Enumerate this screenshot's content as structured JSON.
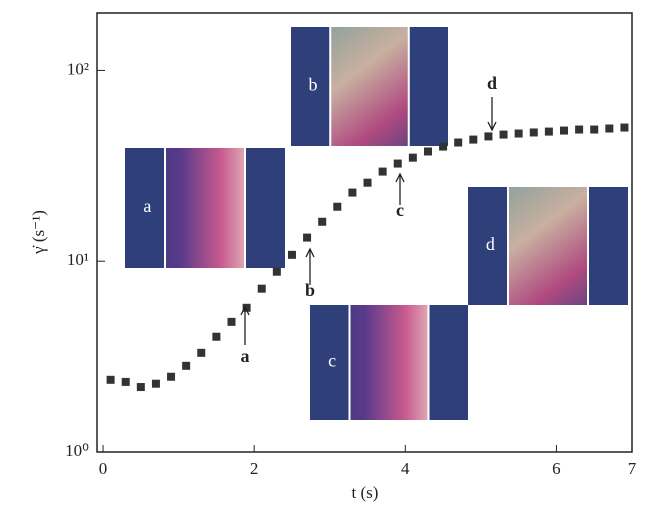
{
  "chart_data": {
    "type": "scatter",
    "x_label": "t (s)",
    "y_label": "γ̇ (s⁻¹)",
    "x": [
      0.1,
      0.3,
      0.5,
      0.7,
      0.9,
      1.1,
      1.3,
      1.5,
      1.7,
      1.9,
      2.1,
      2.3,
      2.5,
      2.7,
      2.9,
      3.1,
      3.3,
      3.5,
      3.7,
      3.9,
      4.1,
      4.3,
      4.5,
      4.7,
      4.9,
      5.1,
      5.3,
      5.5,
      5.7,
      5.9,
      6.1,
      6.3,
      6.5,
      6.7,
      6.9
    ],
    "values": [
      2.39,
      2.33,
      2.19,
      2.28,
      2.48,
      2.83,
      3.31,
      4.02,
      4.81,
      5.7,
      7.18,
      8.81,
      10.8,
      13.3,
      16.1,
      19.3,
      22.9,
      25.8,
      29.5,
      32.5,
      34.9,
      37.6,
      39.9,
      41.9,
      43.4,
      45.1,
      46.1,
      46.7,
      47.3,
      47.8,
      48.4,
      49.0,
      49.0,
      49.6,
      50.2
    ],
    "color": "#333333",
    "xlim": [
      -0.08,
      7
    ],
    "xticks": [
      0,
      2,
      4,
      6,
      7
    ],
    "ylim": [
      1,
      200
    ],
    "yscale": "log",
    "yticks": [
      {
        "value": 1,
        "label": "10⁰"
      },
      {
        "value": 10,
        "label": "10¹"
      },
      {
        "value": 100,
        "label": "10²"
      }
    ],
    "annotations": [
      "a",
      "b",
      "c",
      "d"
    ],
    "insets": [
      "a",
      "b",
      "c",
      "d"
    ]
  }
}
